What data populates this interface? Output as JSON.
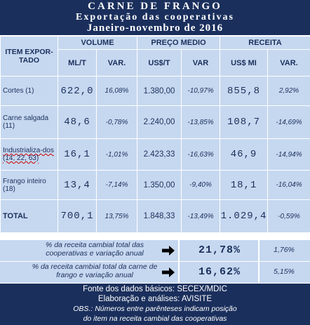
{
  "header": {
    "title": "CARNE DE FRANGO",
    "subtitle": "Exportação das cooperativas",
    "period": "Janeiro-novembro de 2016"
  },
  "columns": {
    "item": "ITEM EXPOR-TADO",
    "volume": "VOLUME",
    "price": "PREÇO MEDIO",
    "revenue": "RECEITA",
    "ml_t": "ML/T",
    "var": "VAR.",
    "usd_t": "US$/T",
    "var_price": "VAR",
    "usd_mi": "US$ MI",
    "var_rev": "VAR."
  },
  "rows": [
    {
      "item": "Cortes (1)",
      "vol": "622,0",
      "vol_var": "16,08%",
      "vol_var_neg": false,
      "price": "1.380,00",
      "price_var": "-10,97%",
      "price_var_neg": true,
      "rev": "855,8",
      "rev_var": "2,92%",
      "rev_var_neg": false
    },
    {
      "item": "Carne salgada (11)",
      "vol": "48,6",
      "vol_var": "-0,78%",
      "vol_var_neg": true,
      "price": "2.240,00",
      "price_var": "-13,85%",
      "price_var_neg": true,
      "rev": "108,7",
      "rev_var": "-14,69%",
      "rev_var_neg": true
    },
    {
      "item": "Industrializa-dos (14, 22, 63)",
      "vol": "16,1",
      "vol_var": "-1,01%",
      "vol_var_neg": true,
      "price": "2.423,33",
      "price_var": "-16,63%",
      "price_var_neg": true,
      "rev": "46,9",
      "rev_var": "-14,94%",
      "rev_var_neg": true
    },
    {
      "item": "Frango inteiro (18)",
      "vol": "13,4",
      "vol_var": "-7,14%",
      "vol_var_neg": true,
      "price": "1.350,00",
      "price_var": "-9,40%",
      "price_var_neg": true,
      "rev": "18,1",
      "rev_var": "-16,04%",
      "rev_var_neg": true
    }
  ],
  "total": {
    "item": "TOTAL",
    "vol": "700,1",
    "vol_var": "13,75%",
    "price": "1.848,33",
    "price_var": "-13,49%",
    "rev": "1.029,4",
    "rev_var": "-0,59%"
  },
  "summary": [
    {
      "label": "% da receita cambial total das cooperativas e variação anual",
      "pct": "21,78%",
      "change": "1,76%"
    },
    {
      "label": "% da receita cambial total da carne de frango e variação anual",
      "pct": "16,62%",
      "change": "5,15%"
    }
  ],
  "footer": {
    "source": "Fonte dos dados básicos: SECEX/MDIC",
    "author": "Elaboração e análises: AVISITE",
    "obs1": "OBS.: Números entre parênteses indicam posição",
    "obs2": "do item na receita cambial das cooperativas"
  },
  "colors": {
    "navy": "#1a2f5c",
    "light_blue": "#c6d8f0",
    "negative": "#cc0000"
  }
}
